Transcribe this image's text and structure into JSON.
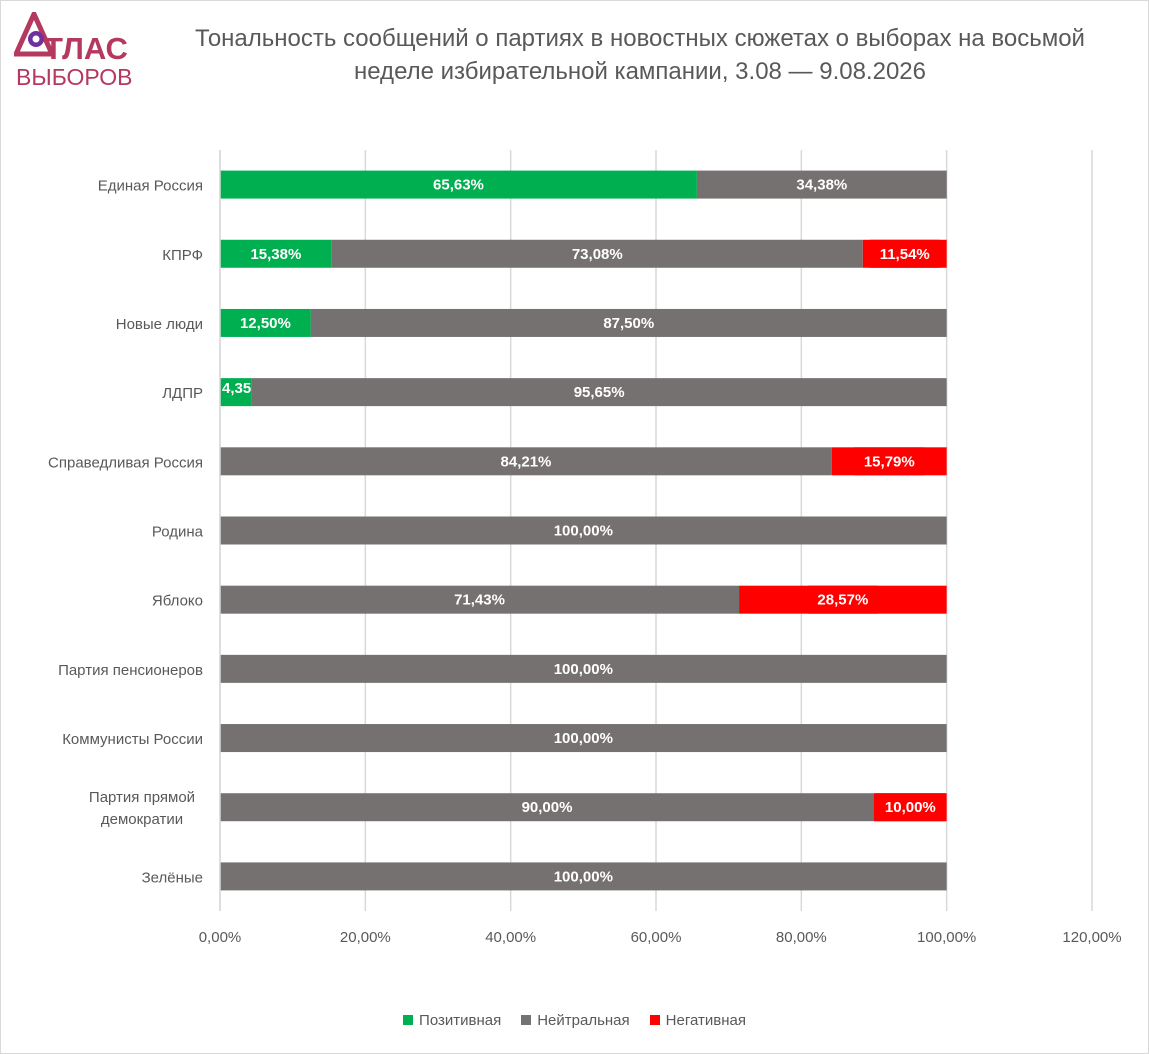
{
  "logo": {
    "line1": "ТЛАС",
    "line2": "ВЫБОРОВ"
  },
  "chart_data": {
    "type": "bar",
    "orientation": "horizontal",
    "stacked": true,
    "title": "Тональность сообщений о партиях в новостных сюжетах о выборах на восьмой неделе избирательной кампании, 3.08 — 9.08.2026",
    "categories": [
      "Единая Россия",
      "КПРФ",
      "Новые люди",
      "ЛДПР",
      "Справедливая Россия",
      "Родина",
      "Яблоко",
      "Партия пенсионеров",
      "Коммунисты России",
      "Партия прямой демократии",
      "Зелёные"
    ],
    "series": [
      {
        "name": "Позитивная",
        "color": "#00b050",
        "values": [
          65.63,
          15.38,
          12.5,
          4.35,
          0,
          0,
          0,
          0,
          0,
          0,
          0
        ]
      },
      {
        "name": "Нейтральная",
        "color": "#767171",
        "values": [
          34.38,
          73.08,
          87.5,
          95.65,
          84.21,
          100,
          71.43,
          100,
          100,
          90,
          100
        ]
      },
      {
        "name": "Негативная",
        "color": "#ff0000",
        "values": [
          0,
          11.54,
          0,
          0,
          15.79,
          0,
          28.57,
          0,
          0,
          10,
          0
        ]
      }
    ],
    "xlim": [
      0,
      120
    ],
    "x_ticks": [
      "0,00%",
      "20,00%",
      "40,00%",
      "60,00%",
      "80,00%",
      "100,00%",
      "120,00%"
    ],
    "grid": true,
    "legend_position": "bottom"
  }
}
